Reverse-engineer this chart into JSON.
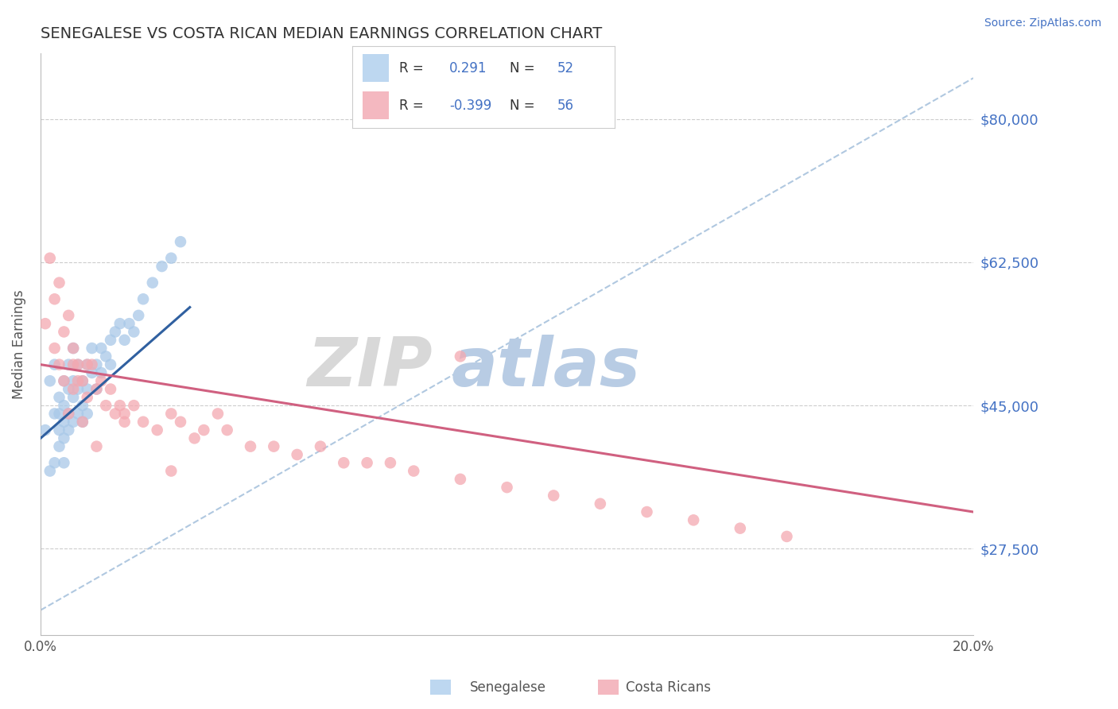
{
  "title": "SENEGALESE VS COSTA RICAN MEDIAN EARNINGS CORRELATION CHART",
  "source": "Source: ZipAtlas.com",
  "ylabel_label": "Median Earnings",
  "xlim": [
    0.0,
    0.2
  ],
  "ylim": [
    17000,
    88000
  ],
  "ytick_labels": [
    "$27,500",
    "$45,000",
    "$62,500",
    "$80,000"
  ],
  "ytick_values": [
    27500,
    45000,
    62500,
    80000
  ],
  "xtick_labels": [
    "0.0%",
    "20.0%"
  ],
  "xtick_values": [
    0.0,
    0.2
  ],
  "background_color": "#ffffff",
  "legend_R_blue": "0.291",
  "legend_N_blue": "52",
  "legend_R_pink": "-0.399",
  "legend_N_pink": "56",
  "blue_color": "#a8c8e8",
  "pink_color": "#f4a8b0",
  "blue_line_color": "#3060a0",
  "pink_line_color": "#d06080",
  "dashed_line_color": "#b0c8e0",
  "title_color": "#333333",
  "right_tick_color": "#4472c4",
  "senegalese_x": [
    0.001,
    0.002,
    0.002,
    0.003,
    0.003,
    0.003,
    0.004,
    0.004,
    0.004,
    0.004,
    0.005,
    0.005,
    0.005,
    0.005,
    0.005,
    0.006,
    0.006,
    0.006,
    0.006,
    0.007,
    0.007,
    0.007,
    0.007,
    0.008,
    0.008,
    0.008,
    0.009,
    0.009,
    0.009,
    0.01,
    0.01,
    0.01,
    0.011,
    0.011,
    0.012,
    0.012,
    0.013,
    0.013,
    0.014,
    0.015,
    0.015,
    0.016,
    0.017,
    0.018,
    0.019,
    0.02,
    0.021,
    0.022,
    0.024,
    0.026,
    0.028,
    0.03
  ],
  "senegalese_y": [
    42000,
    37000,
    48000,
    44000,
    50000,
    38000,
    46000,
    42000,
    44000,
    40000,
    48000,
    45000,
    43000,
    41000,
    38000,
    50000,
    47000,
    44000,
    42000,
    52000,
    48000,
    46000,
    43000,
    50000,
    47000,
    44000,
    48000,
    45000,
    43000,
    50000,
    47000,
    44000,
    52000,
    49000,
    50000,
    47000,
    52000,
    49000,
    51000,
    53000,
    50000,
    54000,
    55000,
    53000,
    55000,
    54000,
    56000,
    58000,
    60000,
    62000,
    63000,
    65000
  ],
  "costarican_x": [
    0.001,
    0.002,
    0.003,
    0.003,
    0.004,
    0.004,
    0.005,
    0.005,
    0.006,
    0.006,
    0.007,
    0.007,
    0.008,
    0.008,
    0.009,
    0.01,
    0.01,
    0.011,
    0.012,
    0.013,
    0.014,
    0.015,
    0.016,
    0.017,
    0.018,
    0.02,
    0.022,
    0.025,
    0.028,
    0.03,
    0.033,
    0.035,
    0.038,
    0.04,
    0.045,
    0.05,
    0.055,
    0.06,
    0.065,
    0.07,
    0.075,
    0.08,
    0.09,
    0.1,
    0.11,
    0.12,
    0.13,
    0.14,
    0.15,
    0.16,
    0.007,
    0.009,
    0.012,
    0.018,
    0.028,
    0.09
  ],
  "costarican_y": [
    55000,
    63000,
    52000,
    58000,
    60000,
    50000,
    54000,
    48000,
    56000,
    44000,
    50000,
    52000,
    48000,
    50000,
    48000,
    50000,
    46000,
    50000,
    47000,
    48000,
    45000,
    47000,
    44000,
    45000,
    43000,
    45000,
    43000,
    42000,
    44000,
    43000,
    41000,
    42000,
    44000,
    42000,
    40000,
    40000,
    39000,
    40000,
    38000,
    38000,
    38000,
    37000,
    36000,
    35000,
    34000,
    33000,
    32000,
    31000,
    30000,
    29000,
    47000,
    43000,
    40000,
    44000,
    37000,
    51000
  ],
  "blue_line_x0": 0.0,
  "blue_line_y0": 41000,
  "blue_line_x1": 0.032,
  "blue_line_y1": 57000,
  "pink_line_x0": 0.0,
  "pink_line_y0": 50000,
  "pink_line_x1": 0.2,
  "pink_line_y1": 32000,
  "dash_line_x0": 0.0,
  "dash_line_y0": 20000,
  "dash_line_x1": 0.2,
  "dash_line_y1": 85000
}
